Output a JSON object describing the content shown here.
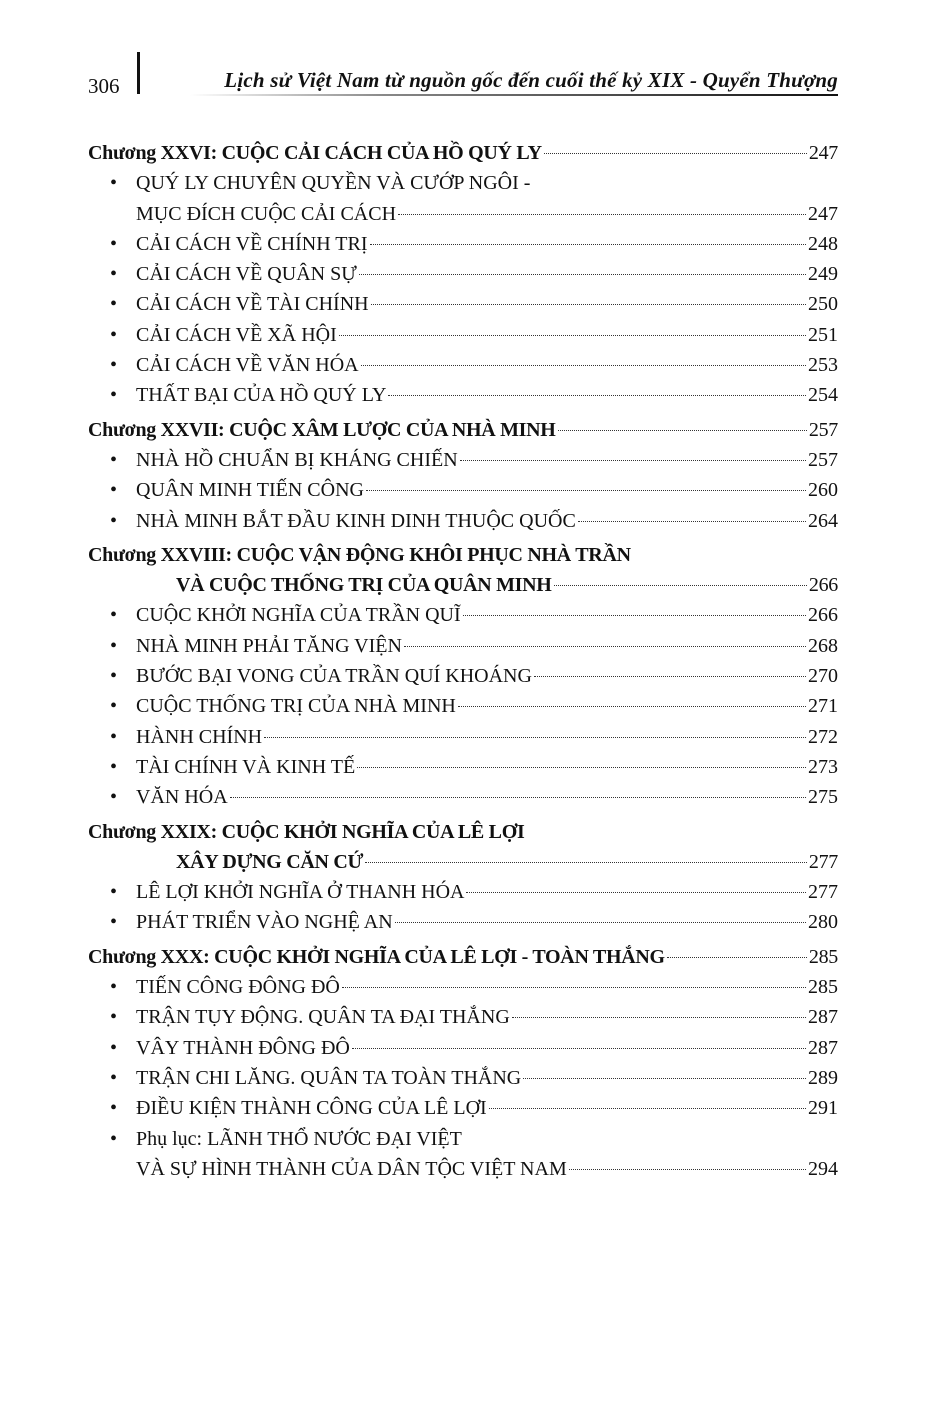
{
  "header": {
    "page_number": "306",
    "title": "Lịch sử Việt Nam từ nguồn gốc đến cuối thế kỷ XIX - Quyển Thượng"
  },
  "entries": [
    {
      "type": "chapter",
      "lines": [
        "Chương XXVI: CUỘC CẢI CÁCH CỦA HỒ QUÝ LY"
      ],
      "page": "247"
    },
    {
      "type": "item",
      "lines": [
        "QUÝ LY CHUYÊN QUYỀN VÀ CƯỚP NGÔI -",
        "MỤC ĐÍCH CUỘC CẢI CÁCH"
      ],
      "page": "247"
    },
    {
      "type": "item",
      "lines": [
        "CẢI CÁCH VỀ CHÍNH TRỊ"
      ],
      "page": "248"
    },
    {
      "type": "item",
      "lines": [
        "CẢI CÁCH VỀ QUÂN SỰ"
      ],
      "page": "249"
    },
    {
      "type": "item",
      "lines": [
        "CẢI CÁCH VỀ TÀI CHÍNH"
      ],
      "page": "250"
    },
    {
      "type": "item",
      "lines": [
        "CẢI CÁCH VỀ XÃ HỘI"
      ],
      "page": "251"
    },
    {
      "type": "item",
      "lines": [
        "CẢI CÁCH VỀ VĂN HÓA"
      ],
      "page": "253"
    },
    {
      "type": "item",
      "lines": [
        "THẤT BẠI CỦA HỒ QUÝ LY"
      ],
      "page": "254"
    },
    {
      "type": "chapter",
      "lines": [
        "Chương XXVII: CUỘC XÂM LƯỢC CỦA NHÀ MINH"
      ],
      "page": "257"
    },
    {
      "type": "item",
      "lines": [
        "NHÀ HỒ CHUẨN BỊ KHÁNG CHIẾN"
      ],
      "page": "257"
    },
    {
      "type": "item",
      "lines": [
        "QUÂN MINH TIẾN CÔNG"
      ],
      "page": "260"
    },
    {
      "type": "item",
      "lines": [
        "NHÀ MINH BẮT ĐẦU KINH DINH THUỘC QUỐC"
      ],
      "page": "264"
    },
    {
      "type": "chapter",
      "lines": [
        "Chương XXVIII: CUỘC VẬN ĐỘNG KHÔI PHỤC NHÀ TRẦN",
        "VÀ CUỘC THỐNG TRỊ CỦA QUÂN MINH"
      ],
      "page": "266"
    },
    {
      "type": "item",
      "lines": [
        "CUỘC KHỞI NGHĨA CỦA TRẦN QUĨ"
      ],
      "page": "266"
    },
    {
      "type": "item",
      "lines": [
        "NHÀ MINH PHẢI TĂNG VIỆN"
      ],
      "page": "268"
    },
    {
      "type": "item",
      "lines": [
        "BƯỚC BẠI VONG CỦA TRẦN QUÍ KHOÁNG"
      ],
      "page": "270"
    },
    {
      "type": "item",
      "lines": [
        "CUỘC THỐNG TRỊ CỦA NHÀ MINH"
      ],
      "page": "271"
    },
    {
      "type": "item",
      "lines": [
        "HÀNH CHÍNH"
      ],
      "page": "272"
    },
    {
      "type": "item",
      "lines": [
        "TÀI CHÍNH VÀ KINH TẾ"
      ],
      "page": "273"
    },
    {
      "type": "item",
      "lines": [
        "VĂN HÓA"
      ],
      "page": "275"
    },
    {
      "type": "chapter",
      "lines": [
        "Chương XXIX: CUỘC KHỞI NGHĨA CỦA LÊ LỢI",
        "XÂY DỰNG CĂN CỨ"
      ],
      "page": "277"
    },
    {
      "type": "item",
      "lines": [
        "LÊ LỢI KHỞI NGHĨA Ở THANH HÓA"
      ],
      "page": "277"
    },
    {
      "type": "item",
      "lines": [
        "PHÁT TRIỂN VÀO NGHỆ AN"
      ],
      "page": "280"
    },
    {
      "type": "chapter",
      "lines": [
        "Chương XXX: CUỘC KHỞI NGHĨA CỦA LÊ LỢI - TOÀN THẮNG"
      ],
      "page": "285"
    },
    {
      "type": "item",
      "lines": [
        "TIẾN CÔNG ĐÔNG ĐÔ"
      ],
      "page": "285"
    },
    {
      "type": "item",
      "lines": [
        "TRẬN TỤY ĐỘNG. QUÂN TA ĐẠI THẮNG"
      ],
      "page": "287"
    },
    {
      "type": "item",
      "lines": [
        "VÂY THÀNH ĐÔNG ĐÔ"
      ],
      "page": "287"
    },
    {
      "type": "item",
      "lines": [
        "TRẬN CHI LĂNG. QUÂN TA TOÀN THẮNG"
      ],
      "page": "289"
    },
    {
      "type": "item",
      "lines": [
        "ĐIỀU KIỆN THÀNH CÔNG CỦA LÊ LỢI"
      ],
      "page": "291"
    },
    {
      "type": "item",
      "lines": [
        "Phụ lục: LÃNH THỔ NƯỚC ĐẠI VIỆT",
        "VÀ SỰ HÌNH THÀNH CỦA DÂN TỘC VIỆT NAM"
      ],
      "page": "294"
    }
  ]
}
